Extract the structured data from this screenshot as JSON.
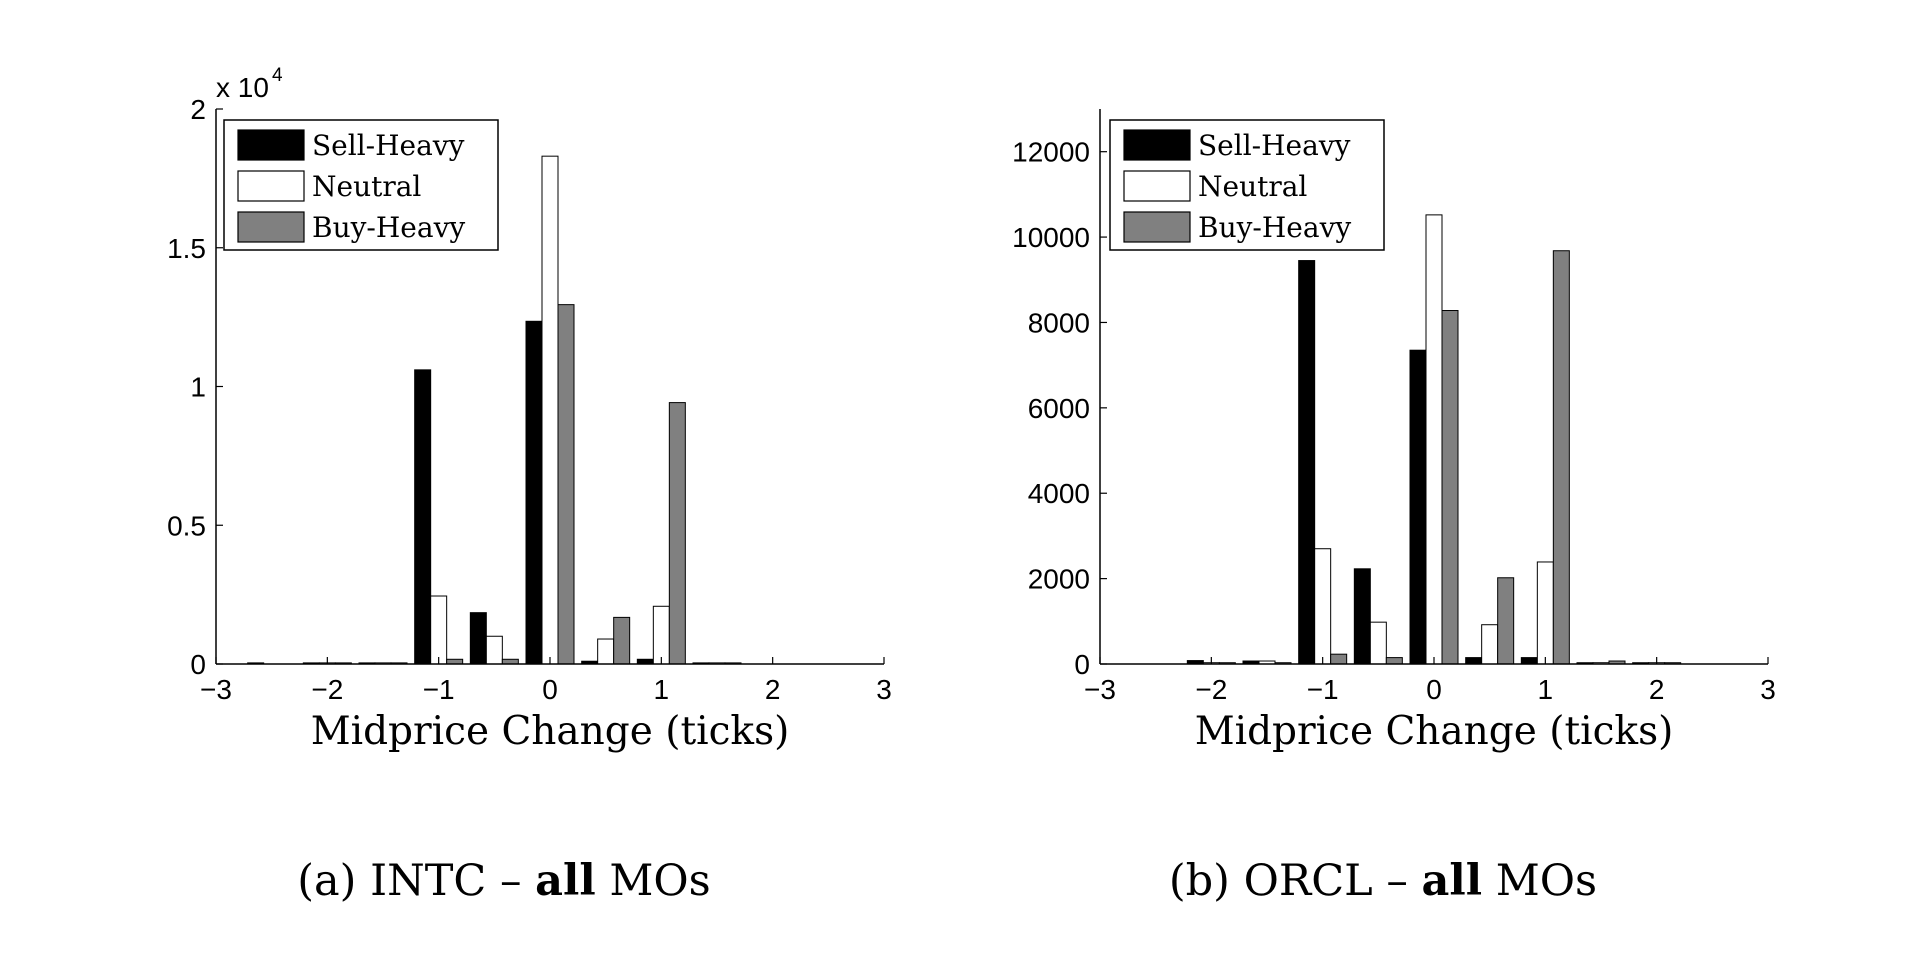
{
  "chart_data": [
    {
      "type": "bar",
      "x": [
        -2.5,
        -2,
        -1.5,
        -1,
        -0.5,
        0,
        0.5,
        1,
        1.5
      ],
      "series": [
        {
          "name": "Sell-Heavy",
          "color": "#000000",
          "values": [
            40,
            40,
            40,
            10600,
            1850,
            12350,
            100,
            170,
            40
          ]
        },
        {
          "name": "Neutral",
          "color": "#ffffff",
          "values": [
            0,
            40,
            40,
            2450,
            1000,
            18300,
            900,
            2080,
            40
          ]
        },
        {
          "name": "Buy-Heavy",
          "color": "#808080",
          "values": [
            0,
            40,
            40,
            170,
            170,
            12950,
            1680,
            9420,
            40
          ]
        }
      ],
      "xlabel": "Midprice Change (ticks)",
      "xlim": [
        -3,
        3
      ],
      "ylim": [
        0,
        20000
      ],
      "xticks": [
        "−3",
        "−2",
        "−1",
        "0",
        "1",
        "2",
        "3"
      ],
      "yticks": [
        "0",
        "0.5",
        "1",
        "1.5",
        "2"
      ],
      "y_multiplier": "x 10",
      "y_multiplier_exp": "4",
      "legend_position": "top-left",
      "grid": false,
      "caption_prefix": "(a) INTC – ",
      "caption_bold": "all",
      "caption_suffix": " MOs"
    },
    {
      "type": "bar",
      "x": [
        -2,
        -1.5,
        -1,
        -0.5,
        0,
        0.5,
        1,
        1.5,
        2
      ],
      "series": [
        {
          "name": "Sell-Heavy",
          "color": "#000000",
          "values": [
            80,
            70,
            9450,
            2230,
            7350,
            150,
            150,
            30,
            30
          ]
        },
        {
          "name": "Neutral",
          "color": "#ffffff",
          "values": [
            30,
            70,
            2700,
            980,
            10520,
            920,
            2390,
            30,
            30
          ]
        },
        {
          "name": "Buy-Heavy",
          "color": "#808080",
          "values": [
            30,
            30,
            230,
            150,
            8280,
            2020,
            9680,
            70,
            30
          ]
        }
      ],
      "xlabel": "Midprice Change (ticks)",
      "xlim": [
        -3,
        3
      ],
      "ylim": [
        0,
        13000
      ],
      "xticks": [
        "−3",
        "−2",
        "−1",
        "0",
        "1",
        "2",
        "3"
      ],
      "yticks": [
        "0",
        "2000",
        "4000",
        "6000",
        "8000",
        "10000",
        "12000"
      ],
      "legend_position": "top-left",
      "grid": false,
      "caption_prefix": "(b) ORCL – ",
      "caption_bold": "all",
      "caption_suffix": " MOs"
    }
  ]
}
